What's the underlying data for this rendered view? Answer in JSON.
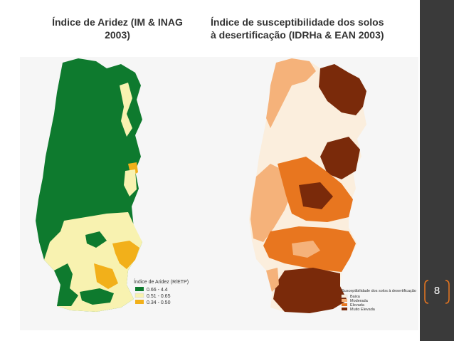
{
  "slide": {
    "page_number": "8"
  },
  "left_map": {
    "title": "Índice de Aridez (IM & INAG 2003)",
    "title_line1": "Índice de Aridez (IM & INAG",
    "title_line2": "2003)",
    "legend": {
      "title": "Índice de Aridez (R/ETP)",
      "items": [
        {
          "label": "0.66 - 4.4",
          "color": "#0e7a2e"
        },
        {
          "label": "0.51 - 0.65",
          "color": "#f8f2b0"
        },
        {
          "label": "0.34 - 0.50",
          "color": "#f2b01a"
        }
      ]
    }
  },
  "right_map": {
    "title": "Índice de susceptibilidade dos solos à desertificação (IDRHa & EAN 2003)",
    "title_line1": "Índice de susceptibilidade dos solos",
    "title_line2": "à desertificação (IDRHa & EAN 2003)",
    "legend": {
      "title": "Susceptibilidade dos solos à desertificação",
      "items": [
        {
          "label": "Baixa",
          "color": "#fbeedd"
        },
        {
          "label": "Moderada",
          "color": "#f5b27a"
        },
        {
          "label": "Elevada",
          "color": "#e8761f"
        },
        {
          "label": "Muito Elevada",
          "color": "#7a2a0a"
        }
      ]
    }
  },
  "colors": {
    "sidebar": "#3a3a3a",
    "accent": "#e8761f"
  }
}
